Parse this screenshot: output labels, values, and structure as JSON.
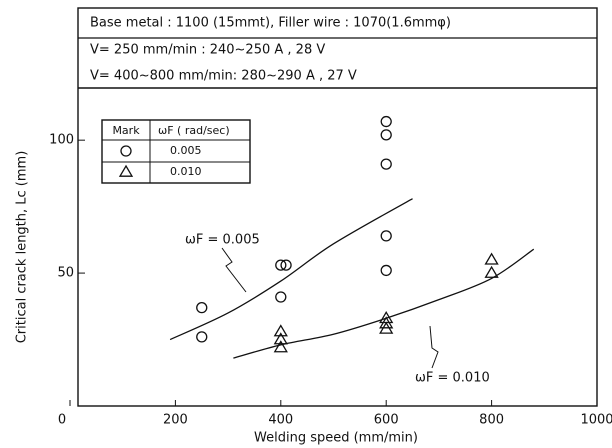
{
  "chart_data": {
    "type": "scatter",
    "header": [
      "Base metal : 1100 (15mmt), Filler wire : 1070(1.6mmφ)",
      "V= 250 mm/min  :  240~250 A , 28 V",
      "V= 400~800 mm/min: 280~290 A , 27 V"
    ],
    "x_label": "Welding speed  (mm/min)",
    "y_label": "Critical crack length, Lc (mm)",
    "xlim": [
      0,
      1000
    ],
    "xticks": [
      0,
      200,
      400,
      600,
      800,
      1000
    ],
    "ylim": [
      0,
      120
    ],
    "yticks": [
      50,
      100
    ],
    "legend_headers": [
      "Mark",
      "ωF ( rad/sec)"
    ],
    "series": [
      {
        "name": "0.005",
        "marker": "circle",
        "color": "#111111",
        "x": [
          250,
          250,
          400,
          410,
          400,
          600,
          600,
          600,
          600,
          600
        ],
        "values": [
          37,
          26,
          53,
          53,
          41,
          107,
          102,
          91,
          64,
          51
        ]
      },
      {
        "name": "0.010",
        "marker": "triangle",
        "color": "#111111",
        "x": [
          400,
          400,
          400,
          600,
          600,
          600,
          800,
          800
        ],
        "values": [
          28,
          25,
          22,
          33,
          31,
          29,
          55,
          50
        ]
      }
    ],
    "curves": [
      {
        "label": "ωF = 0.005",
        "x": [
          190,
          300,
          400,
          500,
          650
        ],
        "values": [
          25,
          35,
          47,
          61,
          78
        ]
      },
      {
        "label": "ωF = 0.010",
        "x": [
          310,
          400,
          500,
          600,
          700,
          800,
          880
        ],
        "values": [
          18,
          23,
          27,
          33,
          40,
          48,
          59
        ]
      }
    ]
  }
}
